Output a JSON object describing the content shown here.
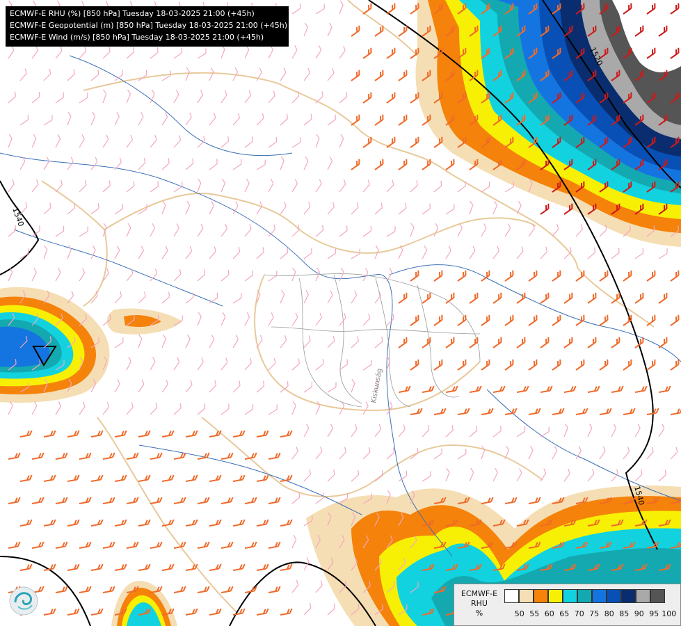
{
  "header": {
    "line1": "ECMWF-E RHU (%) [850 hPa] Tuesday 18-03-2025 21:00 (+45h)",
    "line2": "ECMWF-E Geopotential (m) [850 hPa] Tuesday 18-03-2025 21:00 (+45h)",
    "line3": "ECMWF-E Wind (m/s) [850 hPa] Tuesday 18-03-2025 21:00 (+45h)"
  },
  "map": {
    "isohypse_labels": [
      "1520",
      "1540",
      "1540"
    ],
    "river_label": "Kiskunság",
    "colors": {
      "border": "#e8c99a",
      "river": "#3b6fb6",
      "county": "#9a9a9a",
      "isohypse": "#000000",
      "wind_light": "#f4a6c0",
      "wind_mid": "#f06a2a",
      "wind_strong": "#cc1a1a"
    }
  },
  "legend": {
    "title_lines": [
      "ECMWF-E",
      "RHU",
      "%"
    ],
    "ticks": [
      "50",
      "55",
      "60",
      "65",
      "70",
      "75",
      "80",
      "85",
      "90",
      "95",
      "100"
    ],
    "colors": [
      "#ffffff",
      "#f5deb3",
      "#f5820a",
      "#f7f004",
      "#12d2df",
      "#14a9b0",
      "#1475e0",
      "#0850b5",
      "#0a2d70",
      "#a9a9a9",
      "#555555"
    ]
  },
  "logo": {
    "icon": "ecmwf-swirl-logo"
  }
}
